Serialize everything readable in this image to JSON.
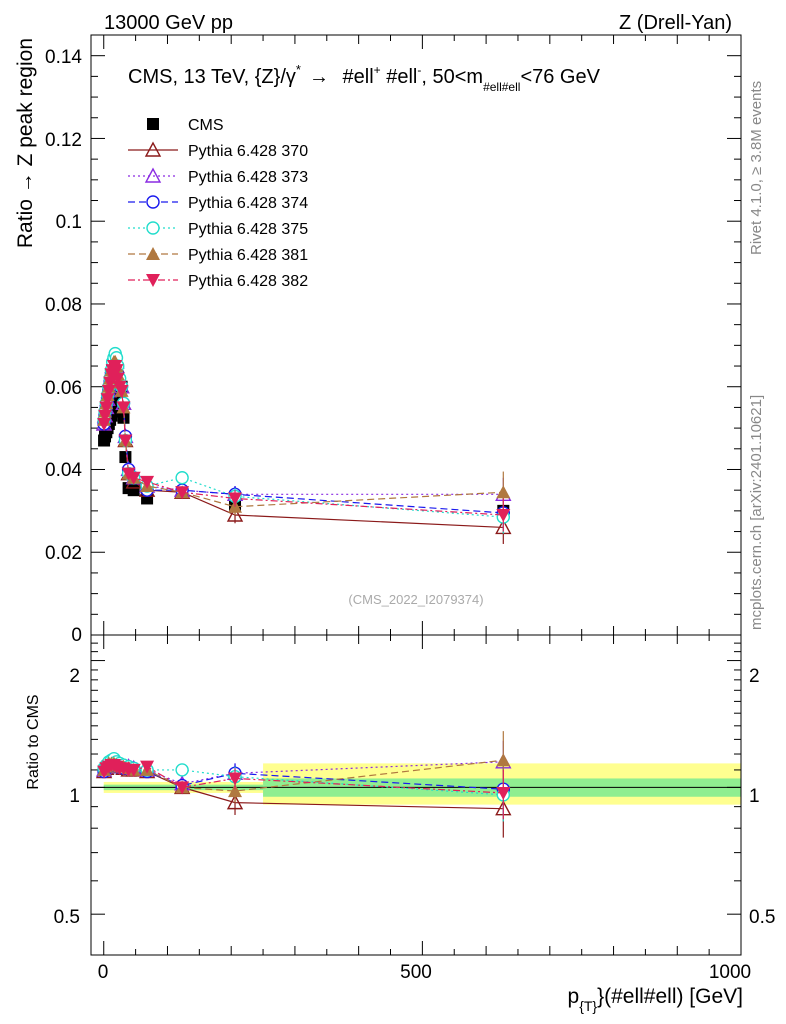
{
  "header": {
    "left": "13000 GeV pp",
    "right": "Z (Drell-Yan)"
  },
  "side_text": {
    "rivet": "Rivet 4.1.0, ≥ 3.8M events",
    "mcplots": "mcplots.cern.ch [arXiv:2401.10621]"
  },
  "watermark": "(CMS_2022_I2079374)",
  "colors": {
    "cms": "#000000",
    "p370": "#8b1a1a",
    "p373": "#8a2be2",
    "p374": "#1a1aee",
    "p375": "#22ddcc",
    "p381": "#b07840",
    "p382": "#e0205a",
    "band_inner": "#90ee90",
    "band_outer": "#ffff90"
  },
  "chart_data": [
    {
      "type": "scatter",
      "title_parts": {
        "prefix": "CMS, 13 TeV, {Z}/γ",
        "star": "*",
        "arrow": "→",
        "ell_plus": "#ell",
        "plus": "+",
        "ell_minus": "#ell",
        "minus": "-",
        "range_a": "50<m",
        "sub": "#ell#ell",
        "range_b": "<76 GeV"
      },
      "ylabel": "Ratio → Z peak region",
      "ylim": [
        0,
        0.145
      ],
      "xlim": [
        -20,
        1000
      ],
      "yticks": [
        "0",
        "0.02",
        "0.04",
        "0.06",
        "0.08",
        "0.1",
        "0.12",
        "0.14"
      ],
      "x": [
        0.5,
        2,
        4,
        6,
        8,
        10,
        12,
        14,
        16,
        18,
        20,
        22,
        25,
        28,
        31,
        34,
        39,
        47,
        68,
        123,
        206,
        627
      ],
      "series": [
        {
          "name": "CMS",
          "key": "cms",
          "marker": "square",
          "values": [
            0.047,
            0.048,
            0.049,
            0.05,
            0.051,
            0.052,
            0.053,
            0.054,
            0.055,
            0.056,
            0.057,
            0.058,
            0.059,
            0.06,
            0.0525,
            0.043,
            0.0355,
            0.035,
            0.033,
            0.0345,
            0.0315,
            0.03
          ]
        },
        {
          "name": "Pythia 6.428 370",
          "key": "p370",
          "marker": "tri-open",
          "values": [
            0.051,
            0.053,
            0.055,
            0.057,
            0.059,
            0.061,
            0.063,
            0.065,
            0.066,
            0.066,
            0.065,
            0.063,
            0.061,
            0.06,
            0.056,
            0.047,
            0.039,
            0.037,
            0.035,
            0.0345,
            0.029,
            0.026
          ],
          "err": [
            0.0007,
            0.0007,
            0.0007,
            0.0007,
            0.0007,
            0.0007,
            0.0007,
            0.0007,
            0.0007,
            0.0007,
            0.0007,
            0.0007,
            0.0007,
            0.0007,
            0.0007,
            0.0007,
            0.0007,
            0.0007,
            0.0007,
            0.001,
            0.002,
            0.004
          ]
        },
        {
          "name": "Pythia 6.428 373",
          "key": "p373",
          "marker": "tri-open",
          "values": [
            0.051,
            0.053,
            0.055,
            0.057,
            0.059,
            0.061,
            0.063,
            0.065,
            0.066,
            0.067,
            0.066,
            0.064,
            0.062,
            0.06,
            0.056,
            0.048,
            0.04,
            0.038,
            0.036,
            0.035,
            0.034,
            0.034
          ],
          "err": [
            0.0007,
            0.0007,
            0.0007,
            0.0007,
            0.0007,
            0.0007,
            0.0007,
            0.0007,
            0.0007,
            0.0007,
            0.0007,
            0.0007,
            0.0007,
            0.0007,
            0.0007,
            0.0007,
            0.0007,
            0.0007,
            0.0007,
            0.001,
            0.002,
            0.004
          ]
        },
        {
          "name": "Pythia 6.428 374",
          "key": "p374",
          "marker": "circle-open",
          "values": [
            0.051,
            0.053,
            0.055,
            0.057,
            0.059,
            0.061,
            0.063,
            0.065,
            0.066,
            0.066,
            0.065,
            0.063,
            0.061,
            0.06,
            0.056,
            0.048,
            0.04,
            0.038,
            0.035,
            0.035,
            0.034,
            0.0295
          ],
          "err": [
            0.0007,
            0.0007,
            0.0007,
            0.0007,
            0.0007,
            0.0007,
            0.0007,
            0.0007,
            0.0007,
            0.0007,
            0.0007,
            0.0007,
            0.0007,
            0.0007,
            0.0007,
            0.0007,
            0.0007,
            0.0007,
            0.0007,
            0.001,
            0.002,
            0.004
          ]
        },
        {
          "name": "Pythia 6.428 375",
          "key": "p375",
          "marker": "circle-open",
          "values": [
            0.052,
            0.054,
            0.056,
            0.058,
            0.06,
            0.062,
            0.064,
            0.066,
            0.067,
            0.068,
            0.067,
            0.065,
            0.062,
            0.06,
            0.056,
            0.047,
            0.039,
            0.038,
            0.036,
            0.038,
            0.0335,
            0.0285
          ],
          "err": [
            0.0007,
            0.0007,
            0.0007,
            0.0007,
            0.0007,
            0.0007,
            0.0007,
            0.0007,
            0.0007,
            0.0007,
            0.0007,
            0.0007,
            0.0007,
            0.0007,
            0.0007,
            0.0007,
            0.0007,
            0.0007,
            0.0007,
            0.001,
            0.002,
            0.004
          ]
        },
        {
          "name": "Pythia 6.428 381",
          "key": "p381",
          "marker": "tri-filled",
          "values": [
            0.052,
            0.054,
            0.056,
            0.058,
            0.06,
            0.062,
            0.064,
            0.065,
            0.066,
            0.066,
            0.065,
            0.063,
            0.061,
            0.059,
            0.055,
            0.047,
            0.039,
            0.038,
            0.036,
            0.0345,
            0.031,
            0.0345
          ],
          "err": [
            0.0007,
            0.0007,
            0.0007,
            0.0007,
            0.0007,
            0.0007,
            0.0007,
            0.0007,
            0.0007,
            0.0007,
            0.0007,
            0.0007,
            0.0007,
            0.0007,
            0.0007,
            0.0007,
            0.0007,
            0.0007,
            0.0007,
            0.001,
            0.002,
            0.005
          ]
        },
        {
          "name": "Pythia 6.428 382",
          "key": "p382",
          "marker": "tri-down-filled",
          "values": [
            0.051,
            0.053,
            0.055,
            0.057,
            0.059,
            0.061,
            0.063,
            0.064,
            0.065,
            0.065,
            0.064,
            0.062,
            0.06,
            0.059,
            0.055,
            0.047,
            0.039,
            0.038,
            0.037,
            0.0345,
            0.033,
            0.029
          ],
          "err": [
            0.0007,
            0.0007,
            0.0007,
            0.0007,
            0.0007,
            0.0007,
            0.0007,
            0.0007,
            0.0007,
            0.0007,
            0.0007,
            0.0007,
            0.0007,
            0.0007,
            0.0007,
            0.0007,
            0.0007,
            0.0007,
            0.0007,
            0.001,
            0.002,
            0.004
          ]
        }
      ]
    },
    {
      "type": "scatter",
      "ylabel": "Ratio to CMS",
      "xlabel": {
        "a": "p",
        "sub": "{T}",
        "b": "}(#ell#ell) [GeV]"
      },
      "ylim": [
        0.4,
        2.3
      ],
      "xlim": [
        -20,
        1000
      ],
      "xticks": [
        "0",
        "500",
        "1000"
      ],
      "yticks": [
        "0.5",
        "1",
        "2"
      ],
      "band": {
        "segments": [
          {
            "x0": 0,
            "x1": 250,
            "inner": [
              0.985,
              1.015
            ],
            "outer": [
              0.97,
              1.03
            ]
          },
          {
            "x0": 250,
            "x1": 1000,
            "inner": [
              0.95,
              1.05
            ],
            "outer": [
              0.91,
              1.14
            ]
          }
        ]
      },
      "x": [
        0.5,
        4,
        8,
        12,
        16,
        20,
        25,
        31,
        39,
        47,
        68,
        123,
        206,
        627
      ],
      "series": [
        {
          "key": "p370",
          "marker": "tri-open",
          "values": [
            1.09,
            1.11,
            1.12,
            1.13,
            1.13,
            1.12,
            1.12,
            1.11,
            1.1,
            1.1,
            1.09,
            1.0,
            0.92,
            0.89
          ],
          "err": [
            0.02,
            0.02,
            0.02,
            0.02,
            0.02,
            0.02,
            0.02,
            0.02,
            0.02,
            0.02,
            0.02,
            0.03,
            0.06,
            0.13
          ]
        },
        {
          "key": "p373",
          "marker": "tri-open",
          "values": [
            1.1,
            1.12,
            1.13,
            1.14,
            1.15,
            1.14,
            1.13,
            1.12,
            1.12,
            1.11,
            1.1,
            1.02,
            1.08,
            1.15
          ],
          "err": [
            0.02,
            0.02,
            0.02,
            0.02,
            0.02,
            0.02,
            0.02,
            0.02,
            0.02,
            0.02,
            0.02,
            0.03,
            0.06,
            0.14
          ]
        },
        {
          "key": "p374",
          "marker": "circle-open",
          "values": [
            1.09,
            1.11,
            1.12,
            1.13,
            1.13,
            1.12,
            1.12,
            1.11,
            1.12,
            1.11,
            1.09,
            1.01,
            1.08,
            0.99
          ],
          "err": [
            0.02,
            0.02,
            0.02,
            0.02,
            0.02,
            0.02,
            0.02,
            0.02,
            0.02,
            0.02,
            0.02,
            0.03,
            0.06,
            0.13
          ]
        },
        {
          "key": "p375",
          "marker": "circle-open",
          "values": [
            1.11,
            1.13,
            1.15,
            1.16,
            1.17,
            1.15,
            1.14,
            1.13,
            1.12,
            1.11,
            1.1,
            1.1,
            1.06,
            0.96
          ],
          "err": [
            0.02,
            0.02,
            0.02,
            0.02,
            0.02,
            0.02,
            0.02,
            0.02,
            0.02,
            0.02,
            0.02,
            0.03,
            0.06,
            0.13
          ]
        },
        {
          "key": "p381",
          "marker": "tri-filled",
          "values": [
            1.1,
            1.12,
            1.14,
            1.14,
            1.14,
            1.13,
            1.12,
            1.12,
            1.11,
            1.1,
            1.1,
            1.0,
            0.98,
            1.16
          ],
          "err": [
            0.02,
            0.02,
            0.02,
            0.02,
            0.02,
            0.02,
            0.02,
            0.02,
            0.02,
            0.02,
            0.02,
            0.03,
            0.06,
            0.2
          ]
        },
        {
          "key": "p382",
          "marker": "tri-down-filled",
          "values": [
            1.09,
            1.11,
            1.12,
            1.13,
            1.13,
            1.12,
            1.11,
            1.11,
            1.1,
            1.1,
            1.12,
            1.0,
            1.05,
            0.97
          ],
          "err": [
            0.02,
            0.02,
            0.02,
            0.02,
            0.02,
            0.02,
            0.02,
            0.02,
            0.02,
            0.02,
            0.02,
            0.03,
            0.06,
            0.13
          ]
        }
      ]
    }
  ]
}
